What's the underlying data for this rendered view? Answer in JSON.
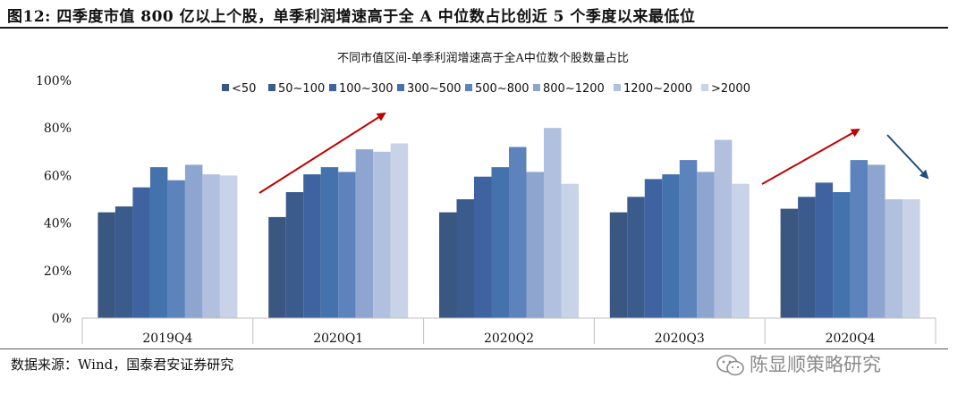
{
  "figure": {
    "title": "图12: 四季度市值 800 亿以上个股，单季利润增速高于全 A 中位数占比创近 5 个季度以来最低位",
    "source": "数据来源：Wind，国泰君安证券研究",
    "watermark": "陈显顺策略研究",
    "watermark_icon": "wechat-icon"
  },
  "colors": {
    "series": [
      "#3a5781",
      "#3c5b8d",
      "#3e63a0",
      "#4472ad",
      "#5c83bc",
      "#8ea6cf",
      "#b0c0de",
      "#c9d3e7"
    ],
    "arrow_up": "#c00000",
    "arrow_down": "#1f4e79"
  },
  "chart_data": {
    "type": "bar",
    "title": "不同市值区间-单季利润增速高于全A中位数个股数量占比",
    "categories": [
      "2019Q4",
      "2020Q1",
      "2020Q2",
      "2020Q3",
      "2020Q4"
    ],
    "ylim": [
      0,
      100
    ],
    "yticks": [
      "0%",
      "20%",
      "40%",
      "60%",
      "80%",
      "100%"
    ],
    "ytick_values": [
      0,
      20,
      40,
      60,
      80,
      100
    ],
    "xlabel": "",
    "ylabel": "",
    "grid": false,
    "legend_position": "top",
    "series": [
      {
        "name": "<50",
        "values": [
          44.5,
          42.5,
          44.5,
          44.5,
          46
        ]
      },
      {
        "name": "50~100",
        "values": [
          47,
          53,
          50,
          51,
          51
        ]
      },
      {
        "name": "100~300",
        "values": [
          55,
          60.5,
          59.5,
          58.5,
          57
        ]
      },
      {
        "name": "300~500",
        "values": [
          63.5,
          63.5,
          63.5,
          60.5,
          53
        ]
      },
      {
        "name": "500~800",
        "values": [
          58,
          61.5,
          72,
          66.5,
          66.5
        ]
      },
      {
        "name": "800~1200",
        "values": [
          64.5,
          71,
          61.5,
          61.5,
          64.5
        ]
      },
      {
        "name": "1200~2000",
        "values": [
          60.5,
          70,
          80,
          75,
          50
        ]
      },
      {
        "name": ">2000",
        "values": [
          60,
          73.5,
          56.5,
          56.5,
          50
        ]
      }
    ],
    "annotations": [
      {
        "type": "arrow",
        "direction": "up",
        "category": "2020Q1",
        "color": "arrow_up"
      },
      {
        "type": "arrow",
        "direction": "up",
        "category": "2020Q4",
        "color": "arrow_up"
      },
      {
        "type": "arrow",
        "direction": "down",
        "category": "2020Q4",
        "color": "arrow_down"
      }
    ]
  }
}
